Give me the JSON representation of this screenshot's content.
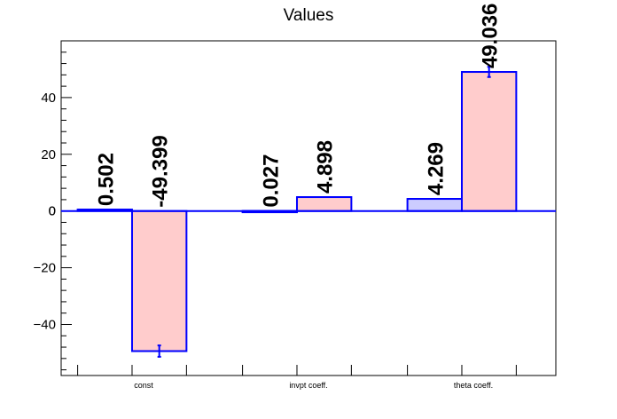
{
  "chart_data": {
    "type": "bar",
    "title": "Values",
    "xlabel": "",
    "ylabel": "",
    "categories": [
      "const",
      "invpt coeff.",
      "theta coeff."
    ],
    "ylim": [
      -58,
      60
    ],
    "yticks": [
      -40,
      -20,
      0,
      20,
      40
    ],
    "grid": false,
    "series": [
      {
        "values": [
          0.502,
          0.027,
          4.269
        ],
        "labels": [
          "0.502",
          "0.027",
          "4.269"
        ],
        "errors": [
          0,
          0,
          0
        ],
        "fill": "#ccccff",
        "stroke": "#0000ff"
      },
      {
        "values": [
          -49.399,
          4.898,
          49.036
        ],
        "labels": [
          "-49.399",
          "4.898",
          "49.036"
        ],
        "errors": [
          2.0,
          0,
          1.8
        ],
        "fill": "#ffcccc",
        "stroke": "#0000ff"
      }
    ]
  }
}
